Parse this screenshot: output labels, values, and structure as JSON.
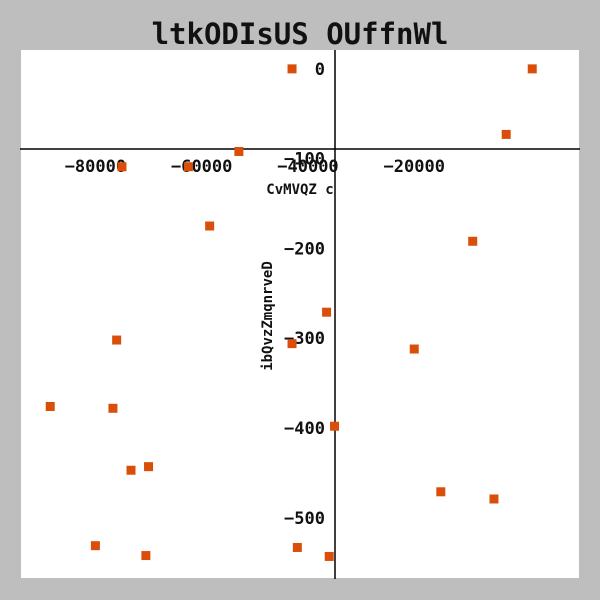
{
  "chart_data": {
    "type": "scatter",
    "title": "ltkODIsUS OUffnWl",
    "xlabel": "CvMVQZ c",
    "ylabel": "ibQvzZmqnrveD",
    "xlim": [
      -94000,
      11000
    ],
    "ylim": [
      -567,
      21
    ],
    "x_ticks": [
      {
        "value": -80000,
        "label": "−80000"
      },
      {
        "value": -60000,
        "label": "−60000"
      },
      {
        "value": -40000,
        "label": "−40000"
      },
      {
        "value": -20000,
        "label": "−20000"
      }
    ],
    "y_ticks": [
      {
        "value": 0,
        "label": "0"
      },
      {
        "value": -100,
        "label": "−100"
      },
      {
        "value": -200,
        "label": "−200"
      },
      {
        "value": -300,
        "label": "−300"
      },
      {
        "value": -400,
        "label": "−400"
      },
      {
        "value": -500,
        "label": "−500"
      }
    ],
    "grid": false,
    "background_color": "#ffffff",
    "outer_color": "#bebebe",
    "series": [
      {
        "marker": "square",
        "color": "#d94f0a",
        "points": [
          {
            "x": 2200,
            "y": 0
          },
          {
            "x": -2700,
            "y": -73
          },
          {
            "x": -43000,
            "y": 0
          },
          {
            "x": -53000,
            "y": -92
          },
          {
            "x": -75000,
            "y": -109
          },
          {
            "x": -62500,
            "y": -109
          },
          {
            "x": -58500,
            "y": -175
          },
          {
            "x": -9000,
            "y": -192
          },
          {
            "x": -36500,
            "y": -271
          },
          {
            "x": -43000,
            "y": -306
          },
          {
            "x": -76000,
            "y": -302
          },
          {
            "x": -20000,
            "y": -312
          },
          {
            "x": -88500,
            "y": -376
          },
          {
            "x": -76700,
            "y": -378
          },
          {
            "x": -35000,
            "y": -398
          },
          {
            "x": -70000,
            "y": -443
          },
          {
            "x": -73300,
            "y": -447
          },
          {
            "x": -15000,
            "y": -471
          },
          {
            "x": -5000,
            "y": -479
          },
          {
            "x": -80000,
            "y": -531
          },
          {
            "x": -70500,
            "y": -542
          },
          {
            "x": -42000,
            "y": -533
          },
          {
            "x": -36000,
            "y": -543
          }
        ]
      }
    ]
  }
}
